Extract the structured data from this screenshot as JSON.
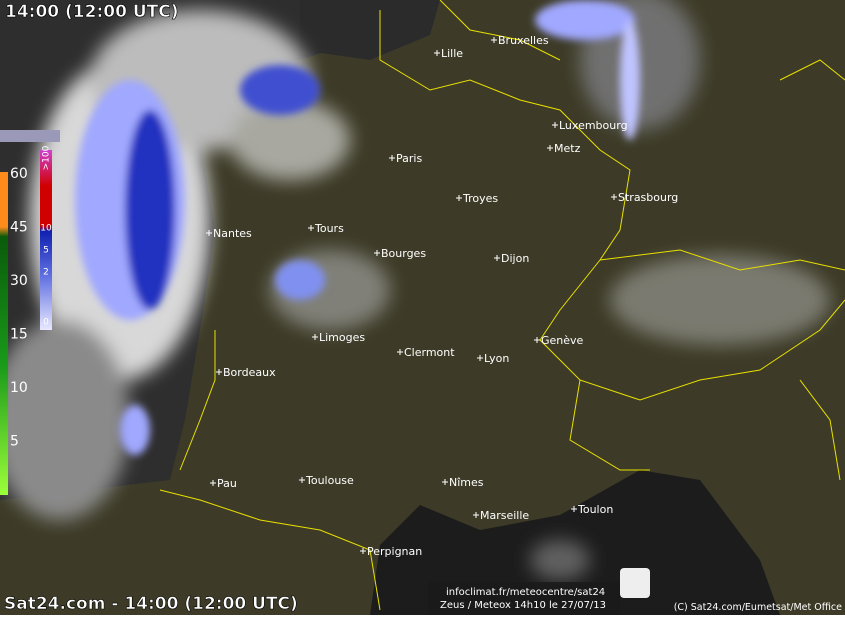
{
  "header": {
    "title": "14:00 (12:00 UTC)"
  },
  "cities": [
    {
      "label": "Lille"
    },
    {
      "label": "Bruxelles"
    },
    {
      "label": "Luxembourg"
    },
    {
      "label": "Metz"
    },
    {
      "label": "Paris"
    },
    {
      "label": "Troyes"
    },
    {
      "label": "Strasbourg"
    },
    {
      "label": "Nantes"
    },
    {
      "label": "Tours"
    },
    {
      "label": "Bourges"
    },
    {
      "label": "Dijon"
    },
    {
      "label": "Genève"
    },
    {
      "label": "Limoges"
    },
    {
      "label": "Clermont"
    },
    {
      "label": "Lyon"
    },
    {
      "label": "Bordeaux"
    },
    {
      "label": "Pau"
    },
    {
      "label": "Toulouse"
    },
    {
      "label": "Nîmes"
    },
    {
      "label": "Marseille"
    },
    {
      "label": "Toulon"
    },
    {
      "label": "Perpignan"
    }
  ],
  "lightning_scale": [
    "60",
    "45",
    "30",
    "15",
    "10",
    "5"
  ],
  "precip_scale": [
    ">100",
    "10",
    "5",
    "2",
    "0"
  ],
  "footer": {
    "title": "Sat24.com - 14:00 (12:00 UTC)",
    "source_url": "infoclimat.fr/meteocentre/sat24",
    "source_note": "Zeus / Meteox 14h10 le 27/07/13",
    "credits": "(C) Sat24.com/Eumetsat/Met Office"
  }
}
